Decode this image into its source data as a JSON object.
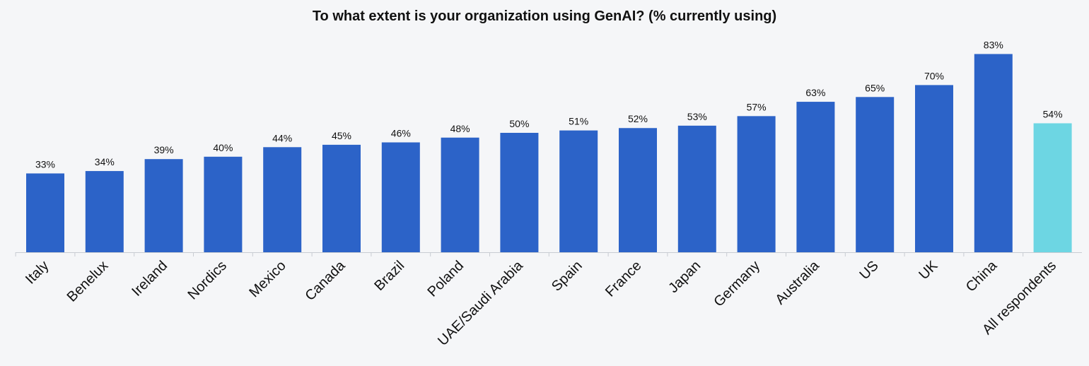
{
  "chart_data": {
    "type": "bar",
    "title": "To what extent is your organization using GenAI? (% currently using)",
    "categories": [
      "Italy",
      "Benelux",
      "Ireland",
      "Nordics",
      "Mexico",
      "Canada",
      "Brazil",
      "Poland",
      "UAE/Saudi Arabia",
      "Spain",
      "France",
      "Japan",
      "Germany",
      "Australia",
      "US",
      "UK",
      "China",
      "All respondents"
    ],
    "values": [
      33,
      34,
      39,
      40,
      44,
      45,
      46,
      48,
      50,
      51,
      52,
      53,
      57,
      63,
      65,
      70,
      83,
      54
    ],
    "data_labels": [
      "33%",
      "34%",
      "39%",
      "40%",
      "44%",
      "45%",
      "46%",
      "48%",
      "50%",
      "51%",
      "52%",
      "53%",
      "57%",
      "63%",
      "65%",
      "70%",
      "83%",
      "54%"
    ],
    "bar_colors": [
      "#2c63c8",
      "#2c63c8",
      "#2c63c8",
      "#2c63c8",
      "#2c63c8",
      "#2c63c8",
      "#2c63c8",
      "#2c63c8",
      "#2c63c8",
      "#2c63c8",
      "#2c63c8",
      "#2c63c8",
      "#2c63c8",
      "#2c63c8",
      "#2c63c8",
      "#2c63c8",
      "#2c63c8",
      "#6dd6e3"
    ],
    "ylim": [
      0,
      100
    ],
    "grid": false,
    "legend": "none"
  },
  "colors": {
    "primary_bar": "#2c63c8",
    "highlight_bar": "#6dd6e3",
    "axis": "#c8ccd2",
    "background": "#f5f6f8"
  }
}
